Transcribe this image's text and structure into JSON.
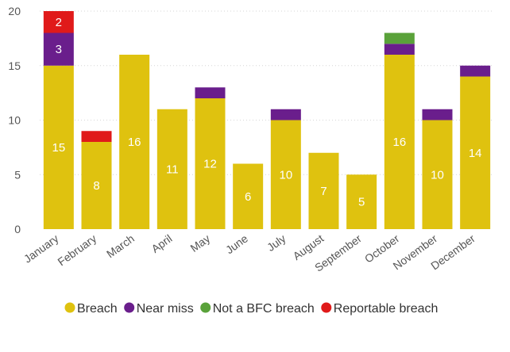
{
  "chart_data": {
    "type": "bar",
    "stacked": true,
    "categories": [
      "January",
      "February",
      "March",
      "April",
      "May",
      "June",
      "July",
      "August",
      "September",
      "October",
      "November",
      "December"
    ],
    "series": [
      {
        "name": "Breach",
        "color": "#DFC20F",
        "values": [
          15,
          8,
          16,
          11,
          12,
          6,
          10,
          7,
          5,
          16,
          10,
          14
        ]
      },
      {
        "name": "Near miss",
        "color": "#6A1E8C",
        "values": [
          3,
          0,
          0,
          0,
          1,
          0,
          1,
          0,
          0,
          1,
          1,
          1
        ]
      },
      {
        "name": "Not a BFC breach",
        "color": "#5AA23A",
        "values": [
          0,
          0,
          0,
          0,
          0,
          0,
          0,
          0,
          0,
          1,
          0,
          0
        ]
      },
      {
        "name": "Reportable breach",
        "color": "#E01A1A",
        "values": [
          2,
          1,
          0,
          0,
          0,
          0,
          0,
          0,
          0,
          0,
          0,
          0
        ]
      }
    ],
    "data_labels": [
      {
        "category": "January",
        "series": "Breach",
        "text": "15"
      },
      {
        "category": "January",
        "series": "Near miss",
        "text": "3"
      },
      {
        "category": "January",
        "series": "Reportable breach",
        "text": "2"
      },
      {
        "category": "February",
        "series": "Breach",
        "text": "8"
      },
      {
        "category": "March",
        "series": "Breach",
        "text": "16"
      },
      {
        "category": "April",
        "series": "Breach",
        "text": "11"
      },
      {
        "category": "May",
        "series": "Breach",
        "text": "12"
      },
      {
        "category": "June",
        "series": "Breach",
        "text": "6"
      },
      {
        "category": "July",
        "series": "Breach",
        "text": "10"
      },
      {
        "category": "August",
        "series": "Breach",
        "text": "7"
      },
      {
        "category": "September",
        "series": "Breach",
        "text": "5"
      },
      {
        "category": "October",
        "series": "Breach",
        "text": "16"
      },
      {
        "category": "November",
        "series": "Breach",
        "text": "10"
      },
      {
        "category": "December",
        "series": "Breach",
        "text": "14"
      }
    ],
    "yticks": [
      0,
      5,
      10,
      15,
      20
    ],
    "ylim": [
      0,
      20
    ],
    "grid": true,
    "legend": "bottom"
  }
}
